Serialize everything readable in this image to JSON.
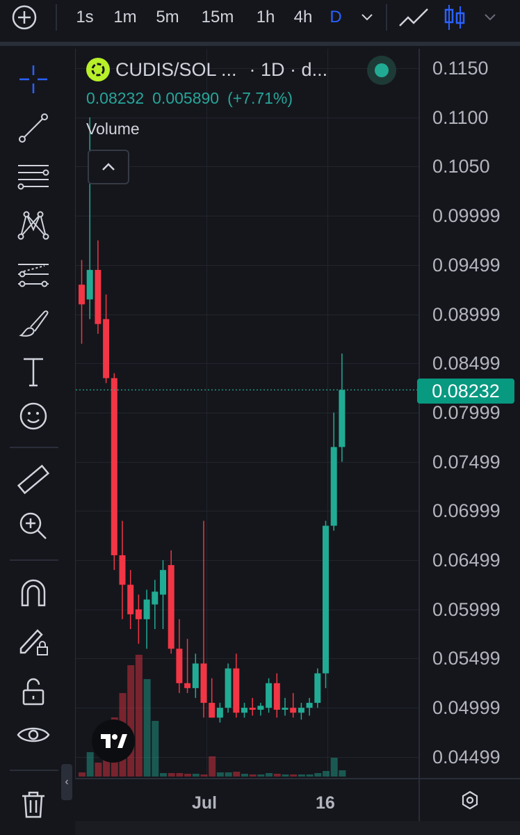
{
  "toolbar": {
    "add_icon": "plus-circle-icon",
    "intervals": [
      "1s",
      "1m",
      "5m",
      "15m",
      "1h",
      "4h",
      "D"
    ],
    "active_interval": "D",
    "chart_types": [
      "line-chart-icon",
      "candle-chart-icon"
    ]
  },
  "legend": {
    "symbol": "CUDIS/SOL ...",
    "interval_info": "· 1D · d...",
    "price": "0.08232",
    "change": "0.005890",
    "change_pct": "(+7.71%)",
    "volume_label": "Volume"
  },
  "price_axis": [
    "0.1150",
    "0.1100",
    "0.1050",
    "0.09999",
    "0.09499",
    "0.08999",
    "0.08499",
    "0.07999",
    "0.07499",
    "0.06999",
    "0.06499",
    "0.05999",
    "0.05499",
    "0.04999",
    "0.04499"
  ],
  "current_price_tag": "0.08232",
  "time_axis": [
    "Jul",
    "16"
  ],
  "colors": {
    "up": "#22ab94",
    "down": "#f23645",
    "bg": "#15161c",
    "accent": "#2962ff"
  },
  "chart_data": {
    "type": "candlestick",
    "y_range": [
      0.0425,
      0.1175
    ],
    "candles": [
      {
        "o": 0.093,
        "h": 0.0955,
        "l": 0.087,
        "c": 0.091
      },
      {
        "o": 0.0915,
        "h": 0.11,
        "l": 0.0895,
        "c": 0.0945
      },
      {
        "o": 0.0945,
        "h": 0.0975,
        "l": 0.088,
        "c": 0.089
      },
      {
        "o": 0.0895,
        "h": 0.092,
        "l": 0.083,
        "c": 0.0835
      },
      {
        "o": 0.0835,
        "h": 0.084,
        "l": 0.064,
        "c": 0.0655
      },
      {
        "o": 0.0655,
        "h": 0.069,
        "l": 0.059,
        "c": 0.0625
      },
      {
        "o": 0.0625,
        "h": 0.064,
        "l": 0.058,
        "c": 0.0595
      },
      {
        "o": 0.06,
        "h": 0.0615,
        "l": 0.0565,
        "c": 0.059
      },
      {
        "o": 0.059,
        "h": 0.062,
        "l": 0.056,
        "c": 0.061
      },
      {
        "o": 0.0605,
        "h": 0.063,
        "l": 0.058,
        "c": 0.0618
      },
      {
        "o": 0.0615,
        "h": 0.065,
        "l": 0.058,
        "c": 0.064
      },
      {
        "o": 0.0645,
        "h": 0.066,
        "l": 0.0555,
        "c": 0.056
      },
      {
        "o": 0.056,
        "h": 0.059,
        "l": 0.0515,
        "c": 0.0525
      },
      {
        "o": 0.0525,
        "h": 0.057,
        "l": 0.0515,
        "c": 0.052
      },
      {
        "o": 0.052,
        "h": 0.0555,
        "l": 0.051,
        "c": 0.0545
      },
      {
        "o": 0.0545,
        "h": 0.069,
        "l": 0.049,
        "c": 0.0505
      },
      {
        "o": 0.0505,
        "h": 0.053,
        "l": 0.049,
        "c": 0.049
      },
      {
        "o": 0.049,
        "h": 0.0505,
        "l": 0.0485,
        "c": 0.05
      },
      {
        "o": 0.05,
        "h": 0.0545,
        "l": 0.0495,
        "c": 0.054
      },
      {
        "o": 0.054,
        "h": 0.0555,
        "l": 0.049,
        "c": 0.0495
      },
      {
        "o": 0.0495,
        "h": 0.0505,
        "l": 0.049,
        "c": 0.05
      },
      {
        "o": 0.05,
        "h": 0.051,
        "l": 0.0492,
        "c": 0.0498
      },
      {
        "o": 0.0498,
        "h": 0.0505,
        "l": 0.0492,
        "c": 0.0502
      },
      {
        "o": 0.05,
        "h": 0.053,
        "l": 0.0495,
        "c": 0.0525
      },
      {
        "o": 0.0525,
        "h": 0.0535,
        "l": 0.049,
        "c": 0.0498
      },
      {
        "o": 0.0498,
        "h": 0.051,
        "l": 0.0492,
        "c": 0.05
      },
      {
        "o": 0.05,
        "h": 0.0515,
        "l": 0.049,
        "c": 0.0495
      },
      {
        "o": 0.0495,
        "h": 0.0505,
        "l": 0.0488,
        "c": 0.05
      },
      {
        "o": 0.05,
        "h": 0.051,
        "l": 0.0492,
        "c": 0.0505
      },
      {
        "o": 0.0505,
        "h": 0.054,
        "l": 0.05,
        "c": 0.0535
      },
      {
        "o": 0.0535,
        "h": 0.069,
        "l": 0.052,
        "c": 0.0685
      },
      {
        "o": 0.0685,
        "h": 0.08,
        "l": 0.068,
        "c": 0.0765
      },
      {
        "o": 0.0765,
        "h": 0.086,
        "l": 0.075,
        "c": 0.0823
      }
    ],
    "volume": [
      0.6,
      3.5,
      2.0,
      7.0,
      8.5,
      12.0,
      16.0,
      17.5,
      14.0,
      8.0,
      0.5,
      0.5,
      0.5,
      0.4,
      0.4,
      0.3,
      2.9,
      0.6,
      0.6,
      0.7,
      0.4,
      0.3,
      0.3,
      0.5,
      0.4,
      0.3,
      0.3,
      0.3,
      0.3,
      0.5,
      0.8,
      2.7,
      0.9
    ],
    "volume_max": 20
  }
}
